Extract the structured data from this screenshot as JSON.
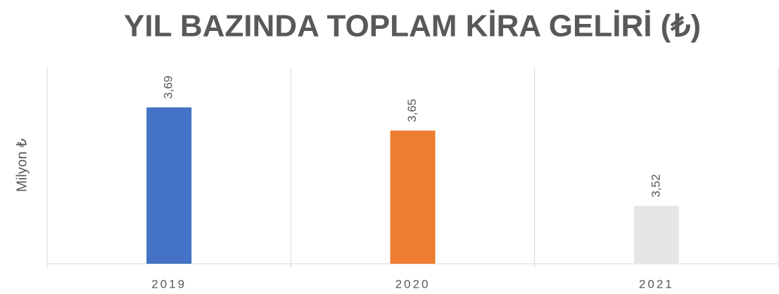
{
  "chart_data": {
    "type": "bar",
    "title": "YIL BAZINDA TOPLAM KİRA GELİRİ (₺)",
    "y_label": "Milyon ₺",
    "categories": [
      "2019",
      "2020",
      "2021"
    ],
    "values": [
      3.69,
      3.65,
      3.52
    ],
    "value_labels": [
      "3,69",
      "3,65",
      "3,52"
    ],
    "colors": [
      "#4472c4",
      "#ed7d31",
      "#e7e6e6"
    ],
    "ylim": [
      3.42,
      3.76
    ]
  }
}
